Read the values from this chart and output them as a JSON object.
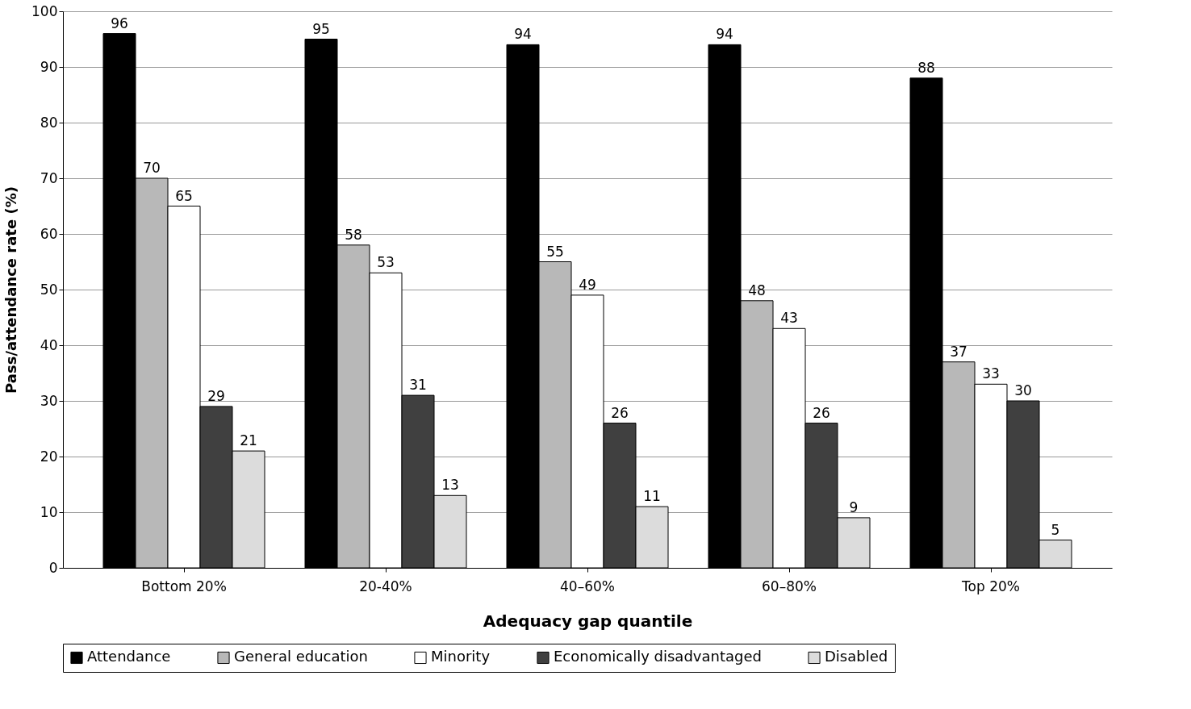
{
  "chart_data": {
    "type": "bar",
    "xlabel": "Adequacy gap quantile",
    "ylabel": "Pass/attendance rate (%)",
    "categories": [
      "Bottom 20%",
      "20-40%",
      "40–60%",
      "60–80%",
      "Top 20%"
    ],
    "series": [
      {
        "name": "Attendance",
        "color": "#000000",
        "values": [
          96,
          95,
          94,
          94,
          88
        ]
      },
      {
        "name": "General education",
        "color": "#b8b8b8",
        "values": [
          70,
          58,
          55,
          48,
          37
        ]
      },
      {
        "name": "Minority",
        "color": "#ffffff",
        "values": [
          65,
          53,
          49,
          43,
          33
        ]
      },
      {
        "name": "Economically disadvantaged",
        "color": "#404040",
        "values": [
          29,
          31,
          26,
          26,
          30
        ]
      },
      {
        "name": "Disabled",
        "color": "#dcdcdc",
        "values": [
          21,
          13,
          11,
          9,
          5
        ]
      }
    ],
    "ylim": [
      0,
      100
    ],
    "yticks": [
      0,
      10,
      20,
      30,
      40,
      50,
      60,
      70,
      80,
      90,
      100
    ],
    "grid": "y",
    "legend": "bottom",
    "data_labels": true
  }
}
